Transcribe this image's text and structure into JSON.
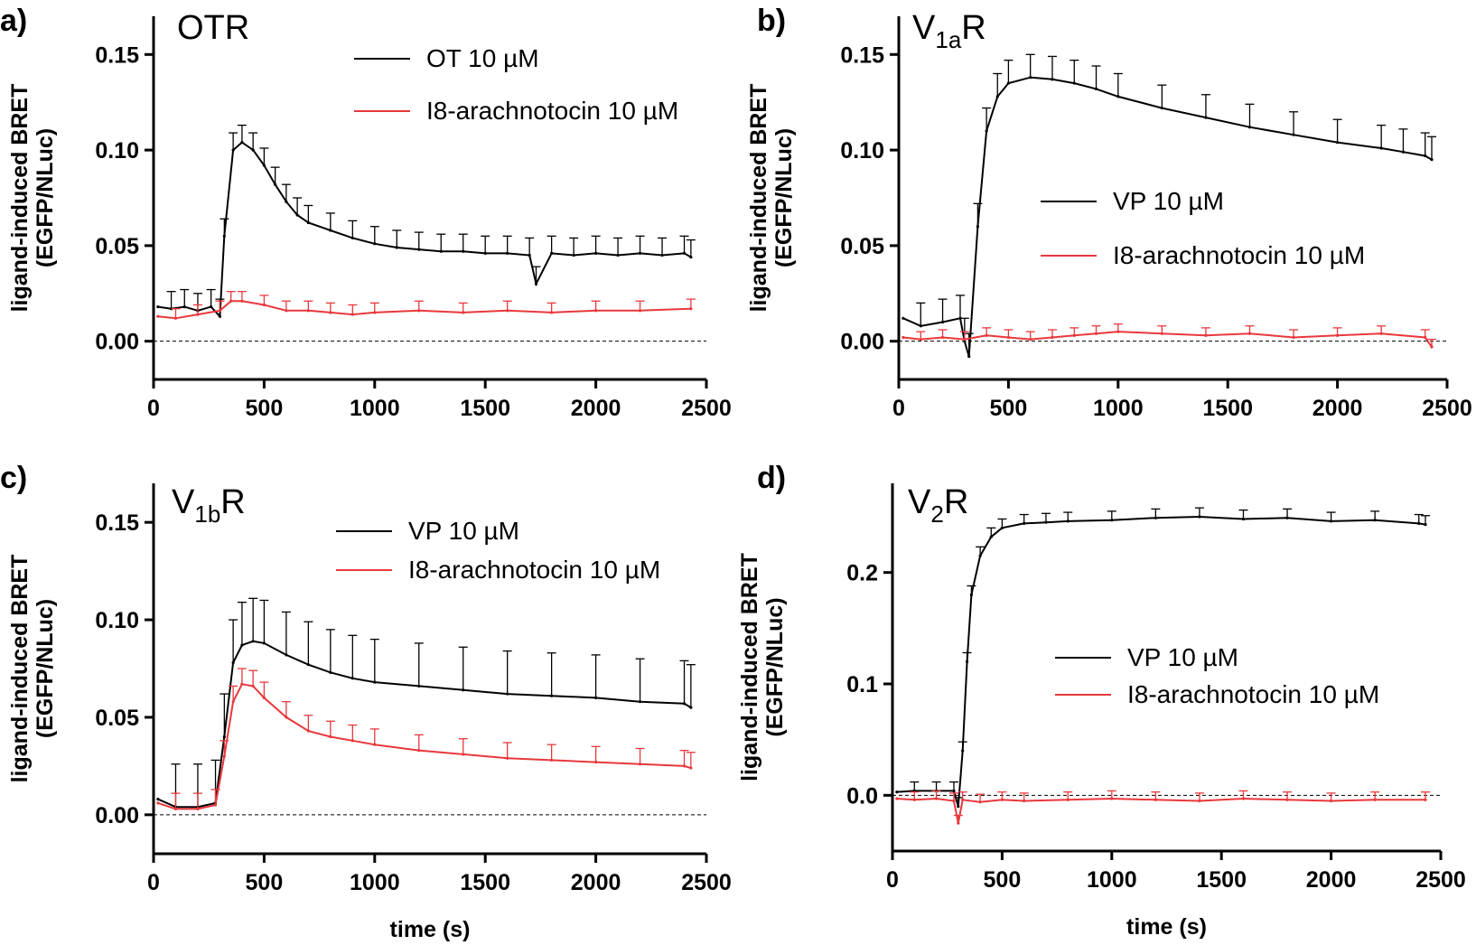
{
  "chart_data": [
    {
      "type": "line",
      "panel_label": "a)",
      "title_main": "OTR",
      "title_sub": "",
      "title_post": "",
      "xlabel": "",
      "ylabel": [
        "ligand-induced BRET",
        "(EGFP/NLuc)"
      ],
      "xlim": [
        0,
        2500
      ],
      "ylim": [
        -0.02,
        0.17
      ],
      "xticks": [
        0,
        500,
        1000,
        1500,
        2000,
        2500
      ],
      "xtick_labels": [
        "0",
        "500",
        "1000",
        "1500",
        "2000",
        "2500"
      ],
      "yticks": [
        0.0,
        0.05,
        0.1,
        0.15
      ],
      "ytick_labels": [
        "0.00",
        "0.05",
        "0.10",
        "0.15"
      ],
      "zero_line": true,
      "legend_position": "top-center",
      "series": [
        {
          "name": "OT 10 µM",
          "color": "#000000",
          "legend_label": "OT 10 µM",
          "x": [
            20,
            80,
            140,
            200,
            260,
            300,
            320,
            360,
            400,
            450,
            500,
            550,
            600,
            650,
            700,
            800,
            900,
            1000,
            1100,
            1200,
            1300,
            1400,
            1500,
            1600,
            1700,
            1730,
            1800,
            1900,
            2000,
            2100,
            2200,
            2300,
            2400,
            2430
          ],
          "y": [
            0.018,
            0.017,
            0.018,
            0.016,
            0.018,
            0.013,
            0.055,
            0.1,
            0.104,
            0.1,
            0.092,
            0.082,
            0.073,
            0.066,
            0.062,
            0.058,
            0.054,
            0.051,
            0.049,
            0.048,
            0.047,
            0.047,
            0.046,
            0.046,
            0.045,
            0.03,
            0.046,
            0.045,
            0.046,
            0.045,
            0.046,
            0.045,
            0.046,
            0.044
          ],
          "error": 0.009
        },
        {
          "name": "I8-arachnotocin 10 µM",
          "color": "#e8383d",
          "legend_label": "I8-arachnotocin 10 µM",
          "x": [
            20,
            100,
            200,
            300,
            350,
            400,
            500,
            600,
            700,
            800,
            900,
            1000,
            1200,
            1400,
            1600,
            1800,
            2000,
            2200,
            2430
          ],
          "y": [
            0.013,
            0.012,
            0.014,
            0.016,
            0.021,
            0.021,
            0.019,
            0.016,
            0.016,
            0.015,
            0.014,
            0.015,
            0.016,
            0.015,
            0.016,
            0.015,
            0.016,
            0.016,
            0.017
          ],
          "error": 0.005
        }
      ]
    },
    {
      "type": "line",
      "panel_label": "b)",
      "title_main": "V",
      "title_sub": "1a",
      "title_post": "R",
      "xlabel": "",
      "ylabel": [
        "ligand-induced BRET",
        "(EGFP/NLuc)"
      ],
      "xlim": [
        0,
        2500
      ],
      "ylim": [
        -0.02,
        0.17
      ],
      "xticks": [
        0,
        500,
        1000,
        1500,
        2000,
        2500
      ],
      "xtick_labels": [
        "0",
        "500",
        "1000",
        "1500",
        "2000",
        "2500"
      ],
      "yticks": [
        0.0,
        0.05,
        0.1,
        0.15
      ],
      "ytick_labels": [
        "0.00",
        "0.05",
        "0.10",
        "0.15"
      ],
      "zero_line": true,
      "legend_position": "center-right",
      "series": [
        {
          "name": "VP 10 µM",
          "color": "#000000",
          "legend_label": "VP 10 µM",
          "x": [
            20,
            100,
            200,
            280,
            300,
            320,
            360,
            400,
            450,
            500,
            600,
            700,
            800,
            900,
            1000,
            1200,
            1400,
            1600,
            1800,
            2000,
            2200,
            2300,
            2400,
            2430
          ],
          "y": [
            0.012,
            0.008,
            0.01,
            0.012,
            0.0,
            -0.008,
            0.06,
            0.11,
            0.128,
            0.135,
            0.138,
            0.137,
            0.135,
            0.132,
            0.128,
            0.122,
            0.117,
            0.112,
            0.108,
            0.104,
            0.101,
            0.099,
            0.097,
            0.095
          ],
          "error": 0.012
        },
        {
          "name": "I8-arachnotocin 10 µM",
          "color": "#e8383d",
          "legend_label": "I8-arachnotocin 10 µM",
          "x": [
            20,
            100,
            200,
            300,
            400,
            500,
            600,
            700,
            800,
            900,
            1000,
            1200,
            1400,
            1600,
            1800,
            2000,
            2200,
            2400,
            2430
          ],
          "y": [
            0.002,
            0.001,
            0.002,
            0.001,
            0.003,
            0.002,
            0.001,
            0.002,
            0.003,
            0.004,
            0.005,
            0.004,
            0.003,
            0.004,
            0.002,
            0.003,
            0.004,
            0.002,
            -0.003
          ],
          "error": 0.004
        }
      ]
    },
    {
      "type": "line",
      "panel_label": "c)",
      "title_main": "V",
      "title_sub": "1b",
      "title_post": "R",
      "xlabel": "time (s)",
      "ylabel": [
        "ligand-induced BRET",
        "(EGFP/NLuc)"
      ],
      "xlim": [
        0,
        2500
      ],
      "ylim": [
        -0.02,
        0.17
      ],
      "xticks": [
        0,
        500,
        1000,
        1500,
        2000,
        2500
      ],
      "xtick_labels": [
        "0",
        "500",
        "1000",
        "1500",
        "2000",
        "2500"
      ],
      "yticks": [
        0.0,
        0.05,
        0.1,
        0.15
      ],
      "ytick_labels": [
        "0.00",
        "0.05",
        "0.10",
        "0.15"
      ],
      "zero_line": true,
      "legend_position": "top-center",
      "series": [
        {
          "name": "VP 10 µM",
          "color": "#000000",
          "legend_label": "VP 10 µM",
          "x": [
            20,
            100,
            200,
            280,
            320,
            360,
            400,
            450,
            500,
            600,
            700,
            800,
            900,
            1000,
            1200,
            1400,
            1600,
            1800,
            2000,
            2200,
            2400,
            2430
          ],
          "y": [
            0.008,
            0.004,
            0.004,
            0.006,
            0.04,
            0.078,
            0.087,
            0.089,
            0.088,
            0.082,
            0.077,
            0.073,
            0.07,
            0.068,
            0.066,
            0.064,
            0.062,
            0.061,
            0.06,
            0.058,
            0.057,
            0.055
          ],
          "error": 0.022
        },
        {
          "name": "I8-arachnotocin 10 µM",
          "color": "#e8383d",
          "legend_label": "I8-arachnotocin 10 µM",
          "x": [
            20,
            100,
            200,
            280,
            320,
            360,
            400,
            450,
            500,
            600,
            700,
            800,
            900,
            1000,
            1200,
            1400,
            1600,
            1800,
            2000,
            2200,
            2400,
            2430
          ],
          "y": [
            0.006,
            0.003,
            0.003,
            0.005,
            0.03,
            0.058,
            0.067,
            0.066,
            0.06,
            0.05,
            0.043,
            0.04,
            0.038,
            0.036,
            0.033,
            0.031,
            0.029,
            0.028,
            0.027,
            0.026,
            0.025,
            0.024
          ],
          "error": 0.008
        }
      ]
    },
    {
      "type": "line",
      "panel_label": "d)",
      "title_main": "V",
      "title_sub": "2",
      "title_post": "R",
      "xlabel": "time (s)",
      "ylabel": [
        "ligand-induced BRET",
        "(EGFP/NLuc)"
      ],
      "xlim": [
        0,
        2500
      ],
      "ylim": [
        -0.05,
        0.28
      ],
      "xticks": [
        0,
        500,
        1000,
        1500,
        2000,
        2500
      ],
      "xtick_labels": [
        "0",
        "500",
        "1000",
        "1500",
        "2000",
        "2500"
      ],
      "yticks": [
        0.0,
        0.1,
        0.2
      ],
      "ytick_labels": [
        "0.0",
        "0.1",
        "0.2"
      ],
      "zero_line": true,
      "legend_position": "center-right",
      "series": [
        {
          "name": "VP 10 µM",
          "color": "#000000",
          "legend_label": "VP 10 µM",
          "x": [
            20,
            100,
            200,
            280,
            300,
            320,
            340,
            360,
            400,
            450,
            500,
            600,
            700,
            800,
            1000,
            1200,
            1400,
            1600,
            1800,
            2000,
            2200,
            2400,
            2430
          ],
          "y": [
            0.003,
            0.004,
            0.004,
            0.004,
            -0.01,
            0.04,
            0.12,
            0.18,
            0.215,
            0.232,
            0.24,
            0.244,
            0.245,
            0.246,
            0.247,
            0.249,
            0.25,
            0.248,
            0.249,
            0.246,
            0.247,
            0.244,
            0.243
          ],
          "error": 0.008
        },
        {
          "name": "I8-arachnotocin 10 µM",
          "color": "#e8383d",
          "legend_label": "I8-arachnotocin 10 µM",
          "x": [
            20,
            100,
            200,
            280,
            300,
            320,
            400,
            500,
            600,
            800,
            1000,
            1200,
            1400,
            1600,
            1800,
            2000,
            2200,
            2430
          ],
          "y": [
            -0.003,
            -0.004,
            -0.003,
            -0.005,
            -0.025,
            -0.004,
            -0.006,
            -0.004,
            -0.005,
            -0.004,
            -0.003,
            -0.004,
            -0.005,
            -0.003,
            -0.004,
            -0.005,
            -0.004,
            -0.004
          ],
          "error": 0.007
        }
      ]
    }
  ]
}
